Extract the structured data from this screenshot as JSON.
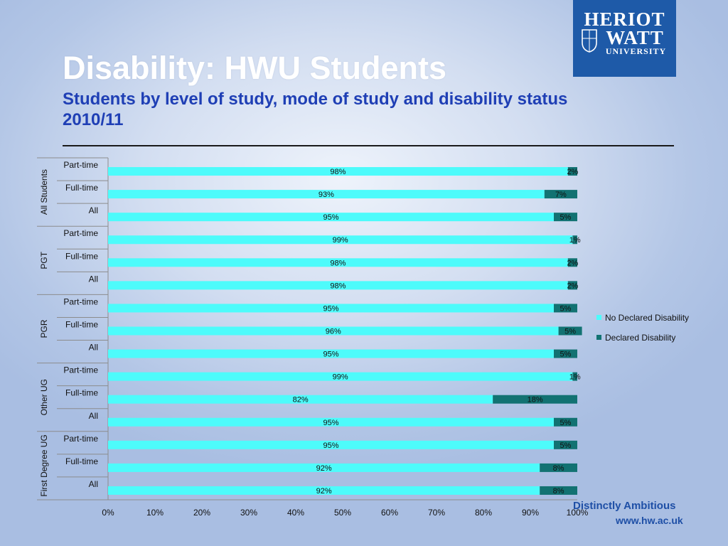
{
  "slide": {
    "title": "Disability: HWU Students",
    "subtitle": "Students by level of study, mode of study and disability status 2010/11",
    "logo_lines": [
      "HERIOT",
      "WATT",
      "UNIVERSITY"
    ],
    "tagline": "Distinctly Ambitious",
    "url": "www.hw.ac.uk"
  },
  "colors": {
    "no_declared": "#4dfbfb",
    "declared": "#127272",
    "logo_bg": "#1e5aa8",
    "title": "#ffffff",
    "subtitle": "#1f3fb5"
  },
  "chart_data": {
    "type": "bar",
    "orientation": "horizontal",
    "stacked": true,
    "grid": false,
    "legend_position": "right",
    "xlim": [
      0,
      100
    ],
    "x_ticks": [
      "0%",
      "10%",
      "20%",
      "30%",
      "40%",
      "50%",
      "60%",
      "70%",
      "80%",
      "90%",
      "100%"
    ],
    "groups": [
      {
        "name": "All Students",
        "categories": [
          "Part-time",
          "Full-time",
          "All"
        ]
      },
      {
        "name": "PGT",
        "categories": [
          "Part-time",
          "Full-time",
          "All"
        ]
      },
      {
        "name": "PGR",
        "categories": [
          "Part-time",
          "Full-time",
          "All"
        ]
      },
      {
        "name": "Other UG",
        "categories": [
          "Part-time",
          "Full-time",
          "All"
        ]
      },
      {
        "name": "First Degree UG",
        "categories": [
          "Part-time",
          "Full-time",
          "All"
        ]
      }
    ],
    "series": [
      {
        "name": "No Declared Disability",
        "values": [
          98,
          93,
          95,
          99,
          98,
          98,
          95,
          96,
          95,
          99,
          82,
          95,
          95,
          92,
          92
        ],
        "labels": [
          "98%",
          "93%",
          "95%",
          "99%",
          "98%",
          "98%",
          "95%",
          "96%",
          "95%",
          "99%",
          "82%",
          "95%",
          "95%",
          "92%",
          "92%"
        ]
      },
      {
        "name": "Declared Disability",
        "values": [
          2,
          7,
          5,
          1,
          2,
          2,
          5,
          5,
          5,
          1,
          18,
          5,
          5,
          8,
          8
        ],
        "labels": [
          "2%",
          "7%",
          "5%",
          "1%",
          "2%",
          "2%",
          "5%",
          "5%",
          "5%",
          "1%",
          "18%",
          "5%",
          "5%",
          "8%",
          "8%"
        ]
      }
    ]
  }
}
